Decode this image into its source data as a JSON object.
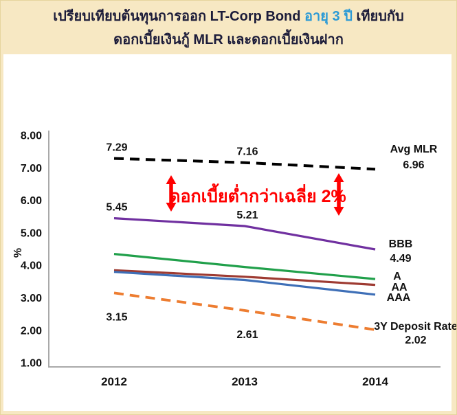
{
  "page": {
    "background": "#F7E8C3"
  },
  "title": {
    "line1_part1": "เปรียบเทียบต้นทุนการออก LT-Corp Bond ",
    "line1_highlight": "อายุ 3 ปี",
    "line1_part2": " เทียบกับ",
    "line2": "ดอกเบี้ยเงินกู้ MLR และดอกเบี้ยเงินฝาก",
    "text_color": "#1C1C3A",
    "highlight_color": "#2B9AD6"
  },
  "annotation": {
    "text": "ดอกเบี้ยต่ำกว่าเฉลี่ย 2%",
    "color": "#FF0000"
  },
  "chart_data": {
    "type": "line",
    "categories": [
      "2012",
      "2013",
      "2014"
    ],
    "xlabel": "",
    "ylabel": "%",
    "ylim": [
      1.0,
      8.0
    ],
    "yticks": [
      "8.00",
      "7.00",
      "6.00",
      "5.00",
      "4.00",
      "3.00",
      "2.00",
      "1.00"
    ],
    "grid": false,
    "legend_position": "right-of-lines",
    "series": [
      {
        "name": "Avg MLR",
        "values": [
          7.29,
          7.16,
          6.96
        ],
        "color": "#000000",
        "style": "dashed",
        "point_labels": [
          "7.29",
          "7.16",
          ""
        ],
        "right_label": [
          "Avg MLR",
          "6.96"
        ]
      },
      {
        "name": "BBB",
        "values": [
          5.45,
          5.21,
          4.49
        ],
        "color": "#7030A0",
        "style": "solid",
        "point_labels": [
          "5.45",
          "5.21",
          ""
        ],
        "right_label": [
          "BBB",
          "4.49"
        ]
      },
      {
        "name": "A",
        "values": [
          4.35,
          3.95,
          3.58
        ],
        "color": "#21A04B",
        "style": "solid",
        "point_labels": [
          "",
          "",
          ""
        ],
        "right_label": [
          "A"
        ]
      },
      {
        "name": "AA",
        "values": [
          3.85,
          3.65,
          3.4
        ],
        "color": "#9E3B32",
        "style": "solid",
        "point_labels": [
          "",
          "",
          ""
        ],
        "right_label": [
          "AA"
        ]
      },
      {
        "name": "AAA",
        "values": [
          3.8,
          3.55,
          3.1
        ],
        "color": "#3E6FB7",
        "style": "solid",
        "point_labels": [
          "",
          "",
          ""
        ],
        "right_label": [
          "AAA"
        ]
      },
      {
        "name": "3Y Deposit Rate",
        "values": [
          3.15,
          2.61,
          2.02
        ],
        "color": "#ED7D31",
        "style": "dashed",
        "point_labels": [
          "3.15",
          "2.61",
          ""
        ],
        "right_label": [
          "3Y Deposit Rate",
          "2.02"
        ]
      }
    ]
  }
}
